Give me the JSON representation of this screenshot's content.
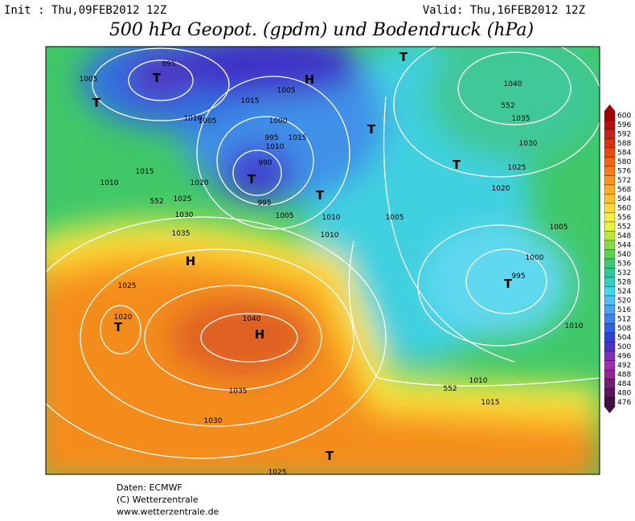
{
  "header": {
    "init": "Init : Thu,09FEB2012 12Z",
    "valid": "Valid: Thu,16FEB2012 12Z",
    "title": "500 hPa Geopot. (gpdm) und Bodendruck (hPa)"
  },
  "colorbar": {
    "labels": [
      "600",
      "596",
      "592",
      "588",
      "584",
      "580",
      "576",
      "572",
      "568",
      "564",
      "560",
      "556",
      "552",
      "548",
      "544",
      "540",
      "536",
      "532",
      "528",
      "524",
      "520",
      "516",
      "512",
      "508",
      "504",
      "500",
      "496",
      "492",
      "488",
      "484",
      "480",
      "476"
    ],
    "colors": [
      "#a00000",
      "#b41010",
      "#c82020",
      "#dc3010",
      "#e84a10",
      "#f06418",
      "#f47c1c",
      "#f89420",
      "#fcac24",
      "#fcc030",
      "#fcd83c",
      "#f8ec44",
      "#e8f040",
      "#b8e840",
      "#88dc48",
      "#5cd050",
      "#40c870",
      "#30c898",
      "#30d0c0",
      "#40d8e8",
      "#50c0f0",
      "#50a0f0",
      "#4080e8",
      "#3060e0",
      "#3040d0",
      "#5030c0",
      "#8030b8",
      "#a030b0",
      "#902890",
      "#702070",
      "#581858",
      "#401040"
    ]
  },
  "map": {
    "labels": [
      "995",
      "T",
      "1005",
      "T",
      "1005",
      "1010",
      "H",
      "1005",
      "1015",
      "1010",
      "T",
      "T",
      "1040",
      "552",
      "1035",
      "1030",
      "1025",
      "1020",
      "T",
      "1015",
      "1010",
      "990",
      "T",
      "995",
      "995",
      "1000",
      "1005",
      "1010",
      "T",
      "1015",
      "1020",
      "552",
      "1025",
      "1030",
      "1035",
      "H",
      "1025",
      "1020",
      "T",
      "1040",
      "H",
      "1035",
      "1030",
      "1025",
      "T",
      "1010",
      "1000",
      "995",
      "T",
      "1005",
      "1005",
      "1010",
      "552",
      "1015",
      "1010"
    ]
  },
  "footer": {
    "source": "Daten: ECMWF",
    "copyright": "(C) Wetterzentrale",
    "url": "www.wetterzentrale.de"
  }
}
